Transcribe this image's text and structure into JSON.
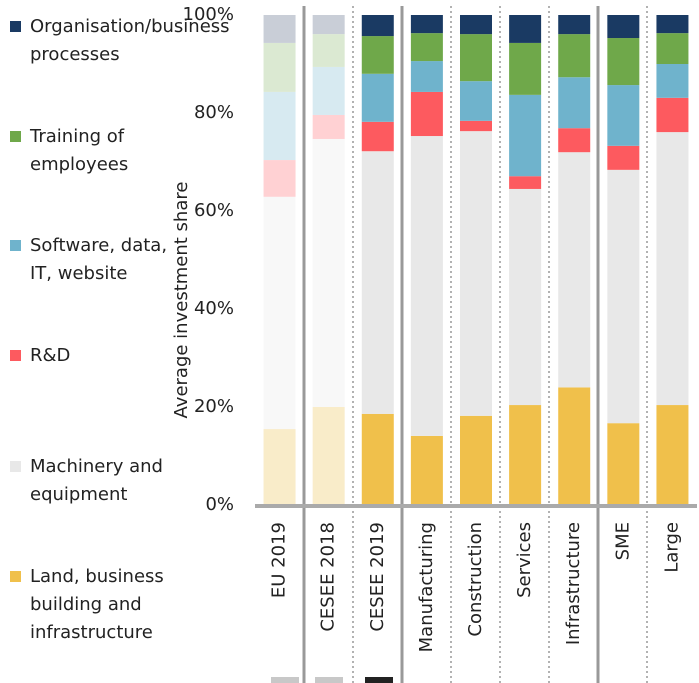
{
  "chart_data": {
    "type": "stacked_bar",
    "y_label": "Average investment share",
    "categories": [
      "EU 2019",
      "CESEE 2018",
      "CESEE 2019",
      "Manufacturing",
      "Construction",
      "Services",
      "Infrastructure",
      "SME",
      "Large"
    ],
    "faded": [
      true,
      true,
      false,
      false,
      false,
      false,
      false,
      false,
      false
    ],
    "series": [
      {
        "name": "Land, business building and infrastructure",
        "color": "#f0c04b",
        "faded_color": "#f9ecc9",
        "values": [
          15.5,
          20,
          18.6,
          14.1,
          18.2,
          20.4,
          24,
          16.7,
          20.4
        ]
      },
      {
        "name": "Machinery and equipment",
        "color": "#e8e8e8",
        "faded_color": "#f8f8f8",
        "values": [
          47.4,
          54.7,
          53.6,
          61.2,
          58.1,
          44.1,
          48,
          51.7,
          55.7
        ]
      },
      {
        "name": "R&D",
        "color": "#fd5a5f",
        "faded_color": "#ffd1d3",
        "values": [
          7.5,
          4.9,
          6,
          9,
          2.1,
          2.6,
          4.9,
          4.9,
          7
        ]
      },
      {
        "name": "Software, data, IT, website",
        "color": "#6fb3cc",
        "faded_color": "#d7eaf1",
        "values": [
          13.9,
          9.8,
          9.8,
          6.3,
          8.1,
          16.6,
          10.4,
          12.4,
          6.9
        ]
      },
      {
        "name": "Training of employees",
        "color": "#6fa84a",
        "faded_color": "#dbe9d2",
        "values": [
          10,
          6.7,
          7.7,
          5.7,
          9.6,
          10.6,
          8.8,
          9.6,
          6.3
        ]
      },
      {
        "name": "Organisation/business processes",
        "color": "#1a3a63",
        "faded_color": "#c9ced7",
        "values": [
          5.7,
          3.9,
          4.3,
          3.7,
          3.9,
          5.7,
          3.9,
          4.7,
          3.7
        ]
      }
    ],
    "ylim": [
      0,
      100
    ],
    "yticks": [
      {
        "value": 0,
        "label": "0%"
      },
      {
        "value": 20,
        "label": "20%"
      },
      {
        "value": 40,
        "label": "40%"
      },
      {
        "value": 60,
        "label": "60%"
      },
      {
        "value": 80,
        "label": "80%"
      },
      {
        "value": 100,
        "label": "100%"
      }
    ]
  }
}
